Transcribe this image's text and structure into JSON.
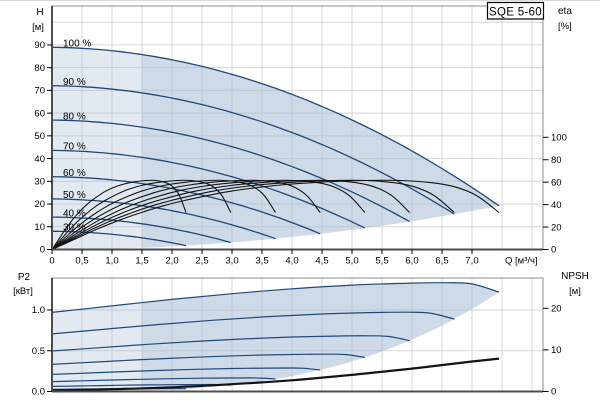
{
  "colors": {
    "curve_blue": "#20497a",
    "curve_black": "#141414",
    "band_fill": "#aabfd6",
    "grid": "#d5d5d5",
    "frame": "#8c8c8c",
    "axis_dark": "#4d4d4d",
    "text": "#000000",
    "box_border": "#000000",
    "box_fill": "#ffffff"
  },
  "chart_data": [
    {
      "type": "line",
      "name": "head-flow-efficiency-chart",
      "title_box": "SQE 5-60",
      "axes": {
        "x": {
          "title": "Q [м³/ч]",
          "min": 0,
          "max": 8.18,
          "tick_step": 0.5,
          "grid_step": 0.5,
          "grid_max": 8.0,
          "tick_labels": [
            "0",
            "0,5",
            "1,0",
            "1,5",
            "2,0",
            "2,5",
            "3,0",
            "3,5",
            "4,0",
            "4,5",
            "5,0",
            "5,5",
            "6,0",
            "6,5",
            "7,0"
          ]
        },
        "y_left": {
          "title": "H",
          "unit": "[м]",
          "min": 0,
          "max": 107,
          "tick_step": 10,
          "tick_labels": [
            "0",
            "10",
            "20",
            "30",
            "40",
            "50",
            "60",
            "70",
            "80",
            "90"
          ],
          "tick_values": [
            0,
            10,
            20,
            30,
            40,
            50,
            60,
            70,
            80,
            90
          ],
          "grid_values": [
            10,
            20,
            30,
            40,
            50,
            60,
            70,
            80,
            90,
            100
          ]
        },
        "y_right": {
          "title": "eta",
          "unit": "[%]",
          "tick_labels": [
            "0",
            "20",
            "40",
            "60",
            "80",
            "100"
          ],
          "tick_values": [
            0,
            20,
            40,
            60,
            80,
            100
          ]
        }
      },
      "speed_curves": {
        "labels": [
          "100 %",
          "90 %",
          "80 %",
          "70 %",
          "60 %",
          "50 %",
          "40 %",
          "30 %"
        ],
        "speeds": [
          1.0,
          0.9,
          0.8,
          0.7,
          0.6,
          0.5,
          0.4,
          0.3
        ],
        "shutoff_head_m": 89,
        "lin_coef": 0.35,
        "quad_coef": 1.21,
        "q_full_m3h": 7.45,
        "end_head_m": 19.2
      },
      "efficiency_shape_q_eta": [
        [
          0,
          0
        ],
        [
          0.05,
          9
        ],
        [
          0.1,
          18
        ],
        [
          0.15,
          26
        ],
        [
          0.2,
          33
        ],
        [
          0.25,
          39
        ],
        [
          0.3,
          44
        ],
        [
          0.4,
          52
        ],
        [
          0.5,
          57
        ],
        [
          0.6,
          60
        ],
        [
          0.7,
          61.5
        ],
        [
          0.78,
          61.5
        ],
        [
          0.85,
          59.5
        ],
        [
          0.9,
          56
        ],
        [
          0.95,
          48
        ],
        [
          1,
          33
        ]
      ],
      "duty_range_split_q": 1.5
    },
    {
      "type": "line",
      "name": "power-npsh-chart",
      "axes": {
        "y_left": {
          "title": "P2",
          "unit": "[кВт]",
          "tick_labels": [
            "0.0",
            "0.5",
            "1.0"
          ],
          "tick_values": [
            0,
            0.5,
            1.0
          ],
          "grid_values": [
            0.5,
            1.0
          ]
        },
        "y_right": {
          "title": "NPSH",
          "unit": "[м]",
          "tick_labels": [
            "0",
            "10",
            "20"
          ],
          "tick_values": [
            0,
            10,
            20
          ]
        }
      },
      "p2_curve_full_speed": [
        [
          0,
          0.97
        ],
        [
          1,
          1.05
        ],
        [
          2,
          1.13
        ],
        [
          3,
          1.2
        ],
        [
          4,
          1.26
        ],
        [
          5,
          1.305
        ],
        [
          6,
          1.33
        ],
        [
          6.6,
          1.335
        ],
        [
          7,
          1.32
        ],
        [
          7.45,
          1.22
        ]
      ],
      "npsh_curve": [
        [
          0,
          0.3
        ],
        [
          1,
          0.55
        ],
        [
          2,
          1.0
        ],
        [
          3,
          1.75
        ],
        [
          4,
          2.7
        ],
        [
          5,
          4.0
        ],
        [
          6,
          5.5
        ],
        [
          7,
          7.2
        ],
        [
          7.45,
          7.9
        ]
      ],
      "duty_range_split_q": 1.5
    }
  ]
}
